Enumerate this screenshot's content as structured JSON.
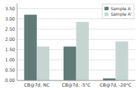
{
  "chart_data": {
    "type": "bar",
    "categories": [
      "CB@7d, NC",
      "CB@7d, -5°C",
      "CB@7d, -20°C"
    ],
    "series": [
      {
        "name": "Sample A",
        "color": "#607b78",
        "values": [
          3.2,
          1.65,
          0.1
        ]
      },
      {
        "name": "Sample A'",
        "color": "#c5d5d2",
        "values": [
          1.65,
          2.85,
          1.9
        ]
      }
    ],
    "ylim": [
      0,
      3.75
    ],
    "yticks": [
      {
        "value": 0.0,
        "label": "0.00"
      },
      {
        "value": 0.5,
        "label": "0.50"
      },
      {
        "value": 1.0,
        "label": "1.00"
      },
      {
        "value": 1.5,
        "label": "1.50"
      },
      {
        "value": 2.0,
        "label": "2.00"
      },
      {
        "value": 2.5,
        "label": "2.50"
      },
      {
        "value": 3.0,
        "label": "3.00"
      },
      {
        "value": 3.5,
        "label": "3.50"
      }
    ],
    "grid": true,
    "legend": "upper right"
  }
}
